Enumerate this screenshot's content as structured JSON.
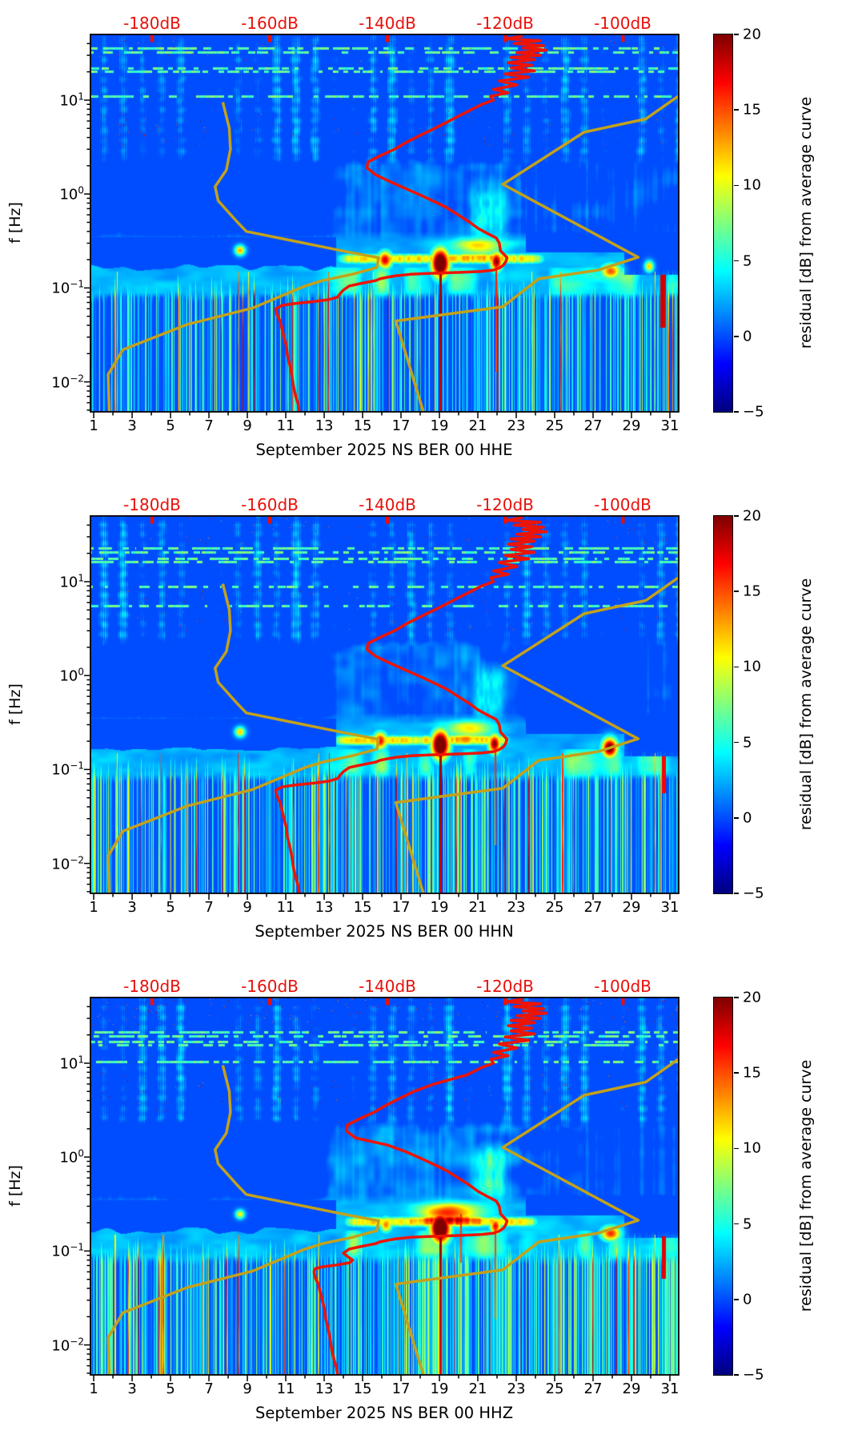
{
  "chart_data": {
    "type": "heatmap",
    "description": "Three stacked seismic spectrogram panels (residual PSD vs average) for station NS BER 00, channels HHE/HHN/HHZ, September 2025, with station average PSD curve (red) and low/high noise model curves (dark yellow) referenced to the top dB axis.",
    "x_axis": {
      "range_days": [
        0.83,
        31.46
      ],
      "major_tick_days": [
        1,
        3,
        5,
        7,
        9,
        11,
        13,
        15,
        17,
        19,
        21,
        23,
        25,
        27,
        29,
        31
      ],
      "tick_labels": [
        "1",
        "3",
        "5",
        "7",
        "9",
        "11",
        "13",
        "15",
        "17",
        "19",
        "21",
        "23",
        "25",
        "27",
        "29",
        "31"
      ],
      "minor_tick_days": [
        2,
        4,
        6,
        8,
        10,
        12,
        14,
        16,
        18,
        20,
        22,
        24,
        26,
        28,
        30
      ]
    },
    "y_axis": {
      "label": "f [Hz]",
      "scale": "log",
      "range_hz": [
        0.0048,
        50
      ],
      "tick_exponents": [
        1,
        0,
        -1,
        -2
      ]
    },
    "top_axis": {
      "range_db": [
        -190.5,
        -90.5
      ],
      "ticks_db": [
        -180,
        -160,
        -140,
        -120,
        -100
      ],
      "labels": [
        "-180dB",
        "-160dB",
        "-140dB",
        "-120dB",
        "-100dB"
      ],
      "color": "#e8100a"
    },
    "colorbar": {
      "label": "residual [dB] from average curve",
      "range": [
        -5,
        20
      ],
      "tick_values": [
        20,
        15,
        10,
        5,
        0,
        -5
      ],
      "tick_labels": [
        "20",
        "15",
        "10",
        "5",
        "0",
        "−5"
      ],
      "colormap": "jet"
    },
    "curves": {
      "nlnm": {
        "name": "low-noise-model",
        "color": "#c3a11c",
        "width": 3.5,
        "points": [
          [
            9.5,
            -168
          ],
          [
            5,
            -166.9
          ],
          [
            3,
            -166.7
          ],
          [
            1.8,
            -167.4
          ],
          [
            1.2,
            -169.3
          ],
          [
            0.85,
            -168.8
          ],
          [
            0.5,
            -165.5
          ],
          [
            0.4,
            -164
          ],
          [
            0.24,
            -146.5
          ],
          [
            0.21,
            -141.5
          ],
          [
            0.165,
            -141.8
          ],
          [
            0.14,
            -146
          ],
          [
            0.12,
            -151
          ],
          [
            0.105,
            -154
          ],
          [
            0.061,
            -163
          ],
          [
            0.041,
            -174
          ],
          [
            0.022,
            -185
          ],
          [
            0.012,
            -187.5
          ],
          [
            0.0048,
            -187.3
          ]
        ]
      },
      "nhnm": {
        "name": "high-noise-model",
        "color": "#c3a11c",
        "width": 3.5,
        "points": [
          [
            11,
            -90.6
          ],
          [
            6.3,
            -96.1
          ],
          [
            4.55,
            -106.6
          ],
          [
            1.27,
            -120.4
          ],
          [
            0.212,
            -97.4
          ],
          [
            0.155,
            -104.2
          ],
          [
            0.125,
            -114.3
          ],
          [
            0.063,
            -120.4
          ],
          [
            0.0445,
            -138.6
          ],
          [
            0.0048,
            -133.9
          ]
        ]
      },
      "station": {
        "name": "station-average-psd",
        "color": "#ed1405",
        "width": 3.5,
        "points": [
          [
            48,
            -117
          ],
          [
            45,
            -120
          ],
          [
            43,
            -114
          ],
          [
            40,
            -118.5
          ],
          [
            38,
            -113.5
          ],
          [
            36,
            -117
          ],
          [
            34,
            -113
          ],
          [
            32,
            -118
          ],
          [
            30,
            -114
          ],
          [
            28.5,
            -119
          ],
          [
            27,
            -115
          ],
          [
            25,
            -119.5
          ],
          [
            23.5,
            -115.5
          ],
          [
            22,
            -119
          ],
          [
            20.5,
            -115
          ],
          [
            19,
            -120
          ],
          [
            17.5,
            -116
          ],
          [
            16,
            -121
          ],
          [
            14.5,
            -118
          ],
          [
            13,
            -122
          ],
          [
            12,
            -119.5
          ],
          [
            11,
            -122.5
          ],
          [
            10,
            -122
          ],
          [
            9,
            -124
          ],
          [
            7.5,
            -126.5
          ],
          [
            6,
            -129.5
          ],
          [
            5,
            -132
          ],
          [
            4.2,
            -134.5
          ],
          [
            3.5,
            -137
          ],
          [
            3,
            -138.8
          ],
          [
            2.6,
            -141
          ],
          [
            2.2,
            -143.3
          ],
          [
            1.9,
            -143.5
          ],
          [
            1.6,
            -142
          ],
          [
            1.35,
            -139.5
          ],
          [
            1.15,
            -137
          ],
          [
            0.95,
            -134
          ],
          [
            0.8,
            -131.5
          ],
          [
            0.72,
            -130
          ],
          [
            0.6,
            -128
          ],
          [
            0.5,
            -126
          ],
          [
            0.43,
            -124.6
          ],
          [
            0.38,
            -123
          ],
          [
            0.34,
            -121.5
          ],
          [
            0.3,
            -121
          ],
          [
            0.25,
            -120.8
          ],
          [
            0.21,
            -119.7
          ],
          [
            0.19,
            -119.9
          ],
          [
            0.175,
            -120.3
          ],
          [
            0.163,
            -121
          ],
          [
            0.155,
            -122
          ],
          [
            0.15,
            -124
          ],
          [
            0.147,
            -127
          ],
          [
            0.145,
            -130
          ],
          [
            0.143,
            -133
          ],
          [
            0.14,
            -136
          ],
          [
            0.135,
            -138.5
          ],
          [
            0.13,
            -140
          ],
          [
            0.125,
            -141.3
          ],
          [
            0.12,
            -142
          ],
          [
            0.115,
            -143.5
          ],
          [
            0.11,
            -145
          ],
          [
            0.105,
            -146.5
          ],
          [
            0.1,
            -147
          ],
          [
            0.095,
            -147.5
          ],
          [
            0.088,
            -148
          ],
          [
            0.08,
            -148.5
          ],
          [
            0.075,
            -150
          ],
          [
            0.071,
            -153
          ],
          [
            0.068,
            -156
          ],
          [
            0.065,
            -158
          ],
          [
            0.06,
            -159
          ],
          [
            0.052,
            -158.8
          ],
          [
            0.045,
            -158.3
          ],
          [
            0.038,
            -158
          ],
          [
            0.03,
            -157.6
          ],
          [
            0.024,
            -157.2
          ],
          [
            0.019,
            -157
          ],
          [
            0.015,
            -156.6
          ],
          [
            0.012,
            -156.3
          ],
          [
            0.009,
            -156
          ],
          [
            0.007,
            -155.6
          ],
          [
            0.0058,
            -155.2
          ],
          [
            0.0048,
            -155
          ]
        ]
      }
    },
    "subplots": [
      {
        "id": "HHE",
        "title": "September 2025 NS BER 00 HHE",
        "features": {
          "seed": 11,
          "streak_rows": [
            17,
            22,
            42,
            46,
            77
          ],
          "th_top": 0.9986,
          "th_mid": 0.9956,
          "dark_pools": [
            [
              4.3,
              7.6,
              0.8,
              160,
              250
            ],
            [
              8.8,
              12.6,
              0.95,
              160,
              252
            ],
            [
              24.5,
              27.5,
              0.4,
              160,
              210
            ]
          ],
          "bright_b": [
            13.8,
            23.6,
            2.8,
            20.7,
            22.5,
            4.5
          ],
          "right_cols": [
            23.8,
            31.4,
            2.0
          ],
          "streak_d0": 13.8,
          "streak_d1": 24.3,
          "pre_blob": [
            21,
            263,
            22,
            8,
            9
          ],
          "blobs": [
            [
              16.15,
              281,
              6.5,
              8,
              18
            ],
            [
              19.03,
              285,
              8,
              13,
              26
            ],
            [
              21.95,
              283,
              5.5,
              9,
              20
            ],
            [
              27.9,
              295,
              9,
              7,
              15
            ],
            [
              8.6,
              269,
              4.5,
              4.5,
              13
            ],
            [
              29.9,
              289,
              4,
              5,
              12
            ]
          ],
          "lines": [
            [
              2.2,
              12.5,
              0.7
            ],
            [
              8.5,
              17,
              0.8
            ],
            [
              9.05,
              12.5,
              0.6
            ],
            [
              13.2,
              17.5,
              0.8
            ],
            [
              15.55,
              13,
              0.6
            ],
            [
              23.8,
              12.5,
              0.6
            ],
            [
              25.3,
              16,
              0.6
            ],
            [
              30.2,
              13,
              0.5
            ]
          ],
          "drips": [
            [
              19.03,
              284,
              471,
              19.5,
              1.6
            ],
            [
              21.93,
              284,
              420,
              16.5,
              1.0
            ]
          ],
          "dark_right_bar": [
            30.5,
            30.78,
            300,
            365,
            18
          ],
          "band_d_boost": 0,
          "dday": 99,
          "dboost": 0,
          "station_adjust": []
        }
      },
      {
        "id": "HHN",
        "title": "September 2025 NS BER 00 HHN",
        "features": {
          "seed": 22,
          "streak_rows": [
            40,
            45,
            53,
            57,
            88,
            112
          ],
          "th_top": 0.9976,
          "th_mid": 0.9956,
          "dark_pools": [
            [
              4.3,
              7.6,
              0.8,
              160,
              250
            ],
            [
              8.9,
              12.6,
              0.95,
              160,
              252
            ],
            [
              23.7,
              29.2,
              1.0,
              185,
              275
            ]
          ],
          "bright_b": [
            13.5,
            23.3,
            3.0,
            20.8,
            22.3,
            4.2
          ],
          "right_cols": [
            29.3,
            31.4,
            1.5
          ],
          "streak_d0": 13.6,
          "streak_d1": 22.5,
          "pre_blob": [
            20.5,
            264,
            20,
            8,
            9
          ],
          "blobs": [
            [
              15.9,
              280,
              6.5,
              8,
              17
            ],
            [
              19.03,
              285,
              8,
              13,
              26
            ],
            [
              21.85,
              284,
              5.5,
              9,
              20
            ],
            [
              27.85,
              289,
              7,
              9,
              22
            ],
            [
              8.6,
              269,
              4.5,
              4.5,
              12
            ]
          ],
          "lines": [
            [
              2.2,
              12,
              0.7
            ],
            [
              4.5,
              16,
              0.6
            ],
            [
              8.5,
              17,
              0.8
            ],
            [
              12.7,
              13,
              0.6
            ],
            [
              13.25,
              17,
              0.7
            ],
            [
              17.3,
              12.5,
              0.6
            ],
            [
              25.4,
              16,
              0.6
            ],
            [
              30.2,
              12.5,
              0.5
            ]
          ],
          "drips": [
            [
              19.03,
              284,
              471,
              19.5,
              1.6
            ],
            [
              21.9,
              284,
              410,
              16,
              1.0
            ]
          ],
          "dark_right_bar": [
            30.55,
            30.78,
            300,
            345,
            17
          ],
          "band_d_boost": 0.7,
          "dday": 99,
          "dboost": 0,
          "station_adjust": []
        }
      },
      {
        "id": "HHZ",
        "title": "September 2025 NS BER 00 HHZ",
        "features": {
          "seed": 33,
          "streak_rows": [
            43,
            48,
            55,
            59,
            80
          ],
          "th_top": 0.9936,
          "th_mid": 0.996,
          "dark_pools": [
            [
              4.6,
              7.4,
              0.9,
              160,
              250
            ],
            [
              8.8,
              12.9,
              1.05,
              160,
              255
            ],
            [
              24,
              26.5,
              0.5,
              160,
              215
            ]
          ],
          "bright_b": [
            13.0,
            23.3,
            3.4,
            20.8,
            22.4,
            5.0
          ],
          "right_cols": [
            23.8,
            31.4,
            2.2
          ],
          "streak_d0": 14.2,
          "streak_d1": 24.0,
          "pre_blob": [
            19.5,
            268,
            26,
            9,
            13
          ],
          "blobs": [
            [
              19.03,
              287,
              9,
              14,
              27
            ],
            [
              21.9,
              285,
              5,
              8,
              17
            ],
            [
              27.9,
              294,
              9,
              7,
              16
            ],
            [
              16.2,
              283,
              5.5,
              7,
              14
            ],
            [
              8.6,
              270,
              4,
              4,
              11
            ]
          ],
          "lines": [
            [
              2.1,
              12,
              0.6
            ],
            [
              4.6,
              16,
              0.6
            ],
            [
              8.55,
              16.5,
              0.7
            ],
            [
              12.7,
              13.5,
              0.7
            ],
            [
              14.9,
              12,
              0.5
            ],
            [
              25.2,
              12,
              0.5
            ],
            [
              30.2,
              13,
              0.5
            ]
          ],
          "drips": [
            [
              19.03,
              286,
              471,
              19.5,
              1.7
            ],
            [
              20.1,
              270,
              330,
              16,
              0.9
            ],
            [
              21.9,
              284,
              400,
              15.5,
              0.9
            ]
          ],
          "dark_right_bar": [
            30.55,
            30.78,
            298,
            350,
            17.5
          ],
          "band_d_boost": 0.5,
          "dday": 13.5,
          "dboost": 1.4,
          "station_adjust": [
            [
              1.3,
              7,
              -3.5
            ],
            [
              0.003,
              0.095,
              6.5
            ]
          ]
        }
      }
    ]
  }
}
